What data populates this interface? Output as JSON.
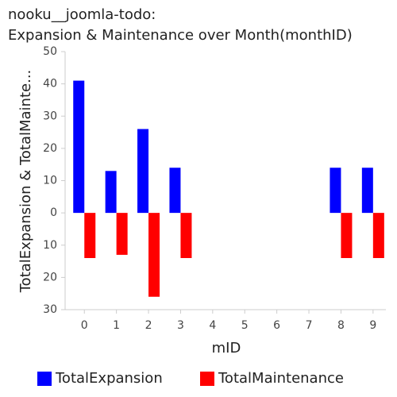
{
  "chart_data": {
    "type": "bar",
    "title": [
      "nooku__joomla-todo:",
      "Expansion & Maintenance over Month(monthID)"
    ],
    "x_label": "mID",
    "y_label": "TotalExpansion & TotalMainte...",
    "categories": [
      0,
      1,
      2,
      3,
      4,
      5,
      6,
      7,
      8,
      9
    ],
    "series": [
      {
        "name": "TotalExpansion",
        "color": "#0000ff",
        "values": [
          41,
          13,
          26,
          14,
          0,
          0,
          0,
          0,
          14,
          14
        ]
      },
      {
        "name": "TotalMaintenance",
        "color": "#ff0000",
        "values": [
          -14,
          -13,
          -26,
          -14,
          0,
          0,
          0,
          0,
          -14,
          -14
        ]
      }
    ],
    "ylim": [
      -30,
      50
    ],
    "yticks": [
      {
        "value": -30,
        "label": "30"
      },
      {
        "value": -20,
        "label": "20"
      },
      {
        "value": -10,
        "label": "10"
      },
      0,
      10,
      20,
      30,
      40,
      50
    ],
    "legend": "bottom"
  }
}
